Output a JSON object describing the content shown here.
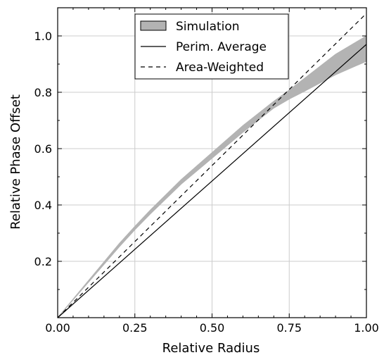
{
  "chart_data": {
    "type": "line",
    "xlabel": "Relative Radius",
    "ylabel": "Relative Phase Offset",
    "xlim": [
      0,
      1
    ],
    "ylim": [
      0,
      1.1
    ],
    "xticks": [
      0,
      0.25,
      0.5,
      0.75,
      1
    ],
    "xtick_labels": [
      "0.00",
      "0.25",
      "0.50",
      "0.75",
      "1.00"
    ],
    "yticks": [
      0.2,
      0.4,
      0.6,
      0.8,
      1.0
    ],
    "ytick_labels": [
      "0.2",
      "0.4",
      "0.6",
      "0.8",
      "1.0"
    ],
    "grid": true,
    "legend_position": "top-center",
    "series": [
      {
        "name": "Simulation",
        "kind": "band",
        "color": "#b3b3b3",
        "x": [
          0,
          0.1,
          0.2,
          0.25,
          0.3,
          0.4,
          0.5,
          0.6,
          0.7,
          0.75,
          0.8,
          0.9,
          1.0
        ],
        "y_low": [
          0,
          0.126,
          0.252,
          0.312,
          0.368,
          0.474,
          0.566,
          0.658,
          0.744,
          0.776,
          0.804,
          0.862,
          0.91
        ],
        "y_high": [
          0,
          0.132,
          0.264,
          0.324,
          0.382,
          0.49,
          0.586,
          0.682,
          0.768,
          0.808,
          0.85,
          0.935,
          1.0
        ]
      },
      {
        "name": "Perim. Average",
        "kind": "line",
        "dash": "solid",
        "color": "#000000",
        "x": [
          0,
          1
        ],
        "y": [
          0,
          0.97
        ]
      },
      {
        "name": "Area-Weighted",
        "kind": "line",
        "dash": "dashed",
        "color": "#000000",
        "x": [
          0,
          1
        ],
        "y": [
          0,
          1.08
        ]
      }
    ]
  }
}
